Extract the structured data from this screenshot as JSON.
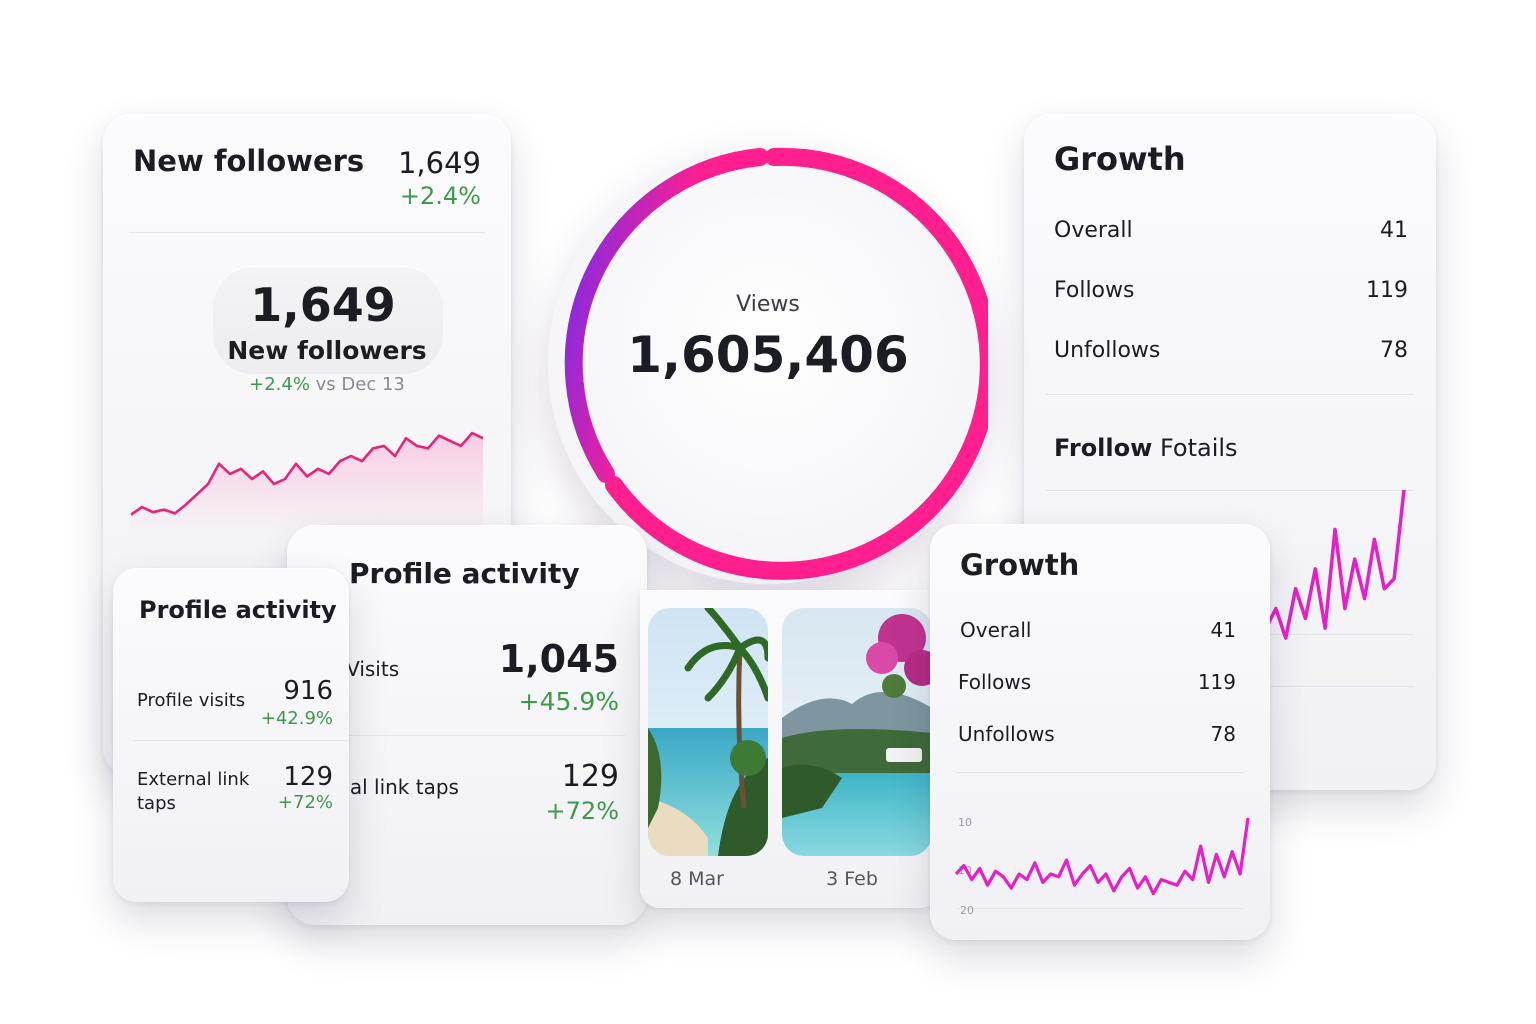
{
  "new_followers": {
    "title": "New followers",
    "total": "1,649",
    "change": "+2.4%",
    "big_value": "1,649",
    "big_label": "New followers",
    "vs_change": "+2.4%",
    "vs_text": "vs Dec 13",
    "accent_color": "#e8237a",
    "trend": [
      12,
      18,
      14,
      16,
      13,
      20,
      28,
      36,
      52,
      44,
      48,
      40,
      46,
      36,
      40,
      52,
      42,
      48,
      44,
      54,
      58,
      54,
      64,
      66,
      58,
      72,
      66,
      64,
      74,
      70,
      66,
      76,
      72
    ]
  },
  "views": {
    "label": "Views",
    "value": "1,605,406",
    "gradient_start": "#6a2cf5",
    "gradient_end": "#ff1f8e"
  },
  "growth_back": {
    "title": "Growth",
    "rows": [
      {
        "label": "Overall",
        "value": "41"
      },
      {
        "label": "Follows",
        "value": "119"
      },
      {
        "label": "Unfollows",
        "value": "78"
      }
    ],
    "footer_bold": "Frollow",
    "footer_rest": "Fotails",
    "trend": [
      20,
      40,
      10,
      60,
      30,
      80,
      20,
      120,
      40,
      90,
      50,
      110,
      60,
      70,
      160
    ]
  },
  "profile_activity_back": {
    "title": "Profile activity",
    "visits_label": "3 Visits",
    "visits": "1,045",
    "visits_change": "+45.9%",
    "ext_label": "ernal link taps",
    "ext": "129",
    "ext_change": "+72%"
  },
  "photos": [
    {
      "date": "8 Mar",
      "scene": "beach-palm-photo"
    },
    {
      "date": "3 Feb",
      "scene": "infinity-pool-photo"
    }
  ],
  "profile_activity_front": {
    "title": "Profile activity",
    "visits_label": "Profile visits",
    "visits": "916",
    "visits_change": "+42.9%",
    "ext_label": "External link taps",
    "ext": "129",
    "ext_change": "+72%"
  },
  "growth_front": {
    "title": "Growth",
    "rows": [
      {
        "label": "Overall",
        "value": "41"
      },
      {
        "label": "Follows",
        "value": "119"
      },
      {
        "label": "Unfollows",
        "value": "78"
      }
    ],
    "axis_ticks": [
      "10",
      "10",
      "20"
    ],
    "trend": [
      30,
      36,
      26,
      34,
      22,
      32,
      28,
      20,
      30,
      26,
      38,
      24,
      30,
      28,
      40,
      22,
      30,
      36,
      24,
      30,
      18,
      28,
      34,
      20,
      28,
      16,
      26,
      24,
      22,
      32,
      26,
      50,
      24,
      44,
      28,
      46,
      30,
      70
    ]
  }
}
